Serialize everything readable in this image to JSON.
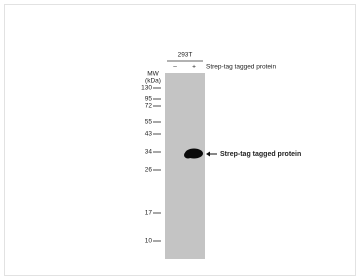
{
  "sample": "293T",
  "lanes": [
    "–",
    "+"
  ],
  "lane_label": "Strep-tag tagged protein",
  "mw_title": "MW",
  "mw_unit": "(kDa)",
  "markers": [
    "130",
    "95",
    "72",
    "55",
    "43",
    "34",
    "26",
    "17",
    "10"
  ],
  "band_label": "Strep-tag tagged protein"
}
